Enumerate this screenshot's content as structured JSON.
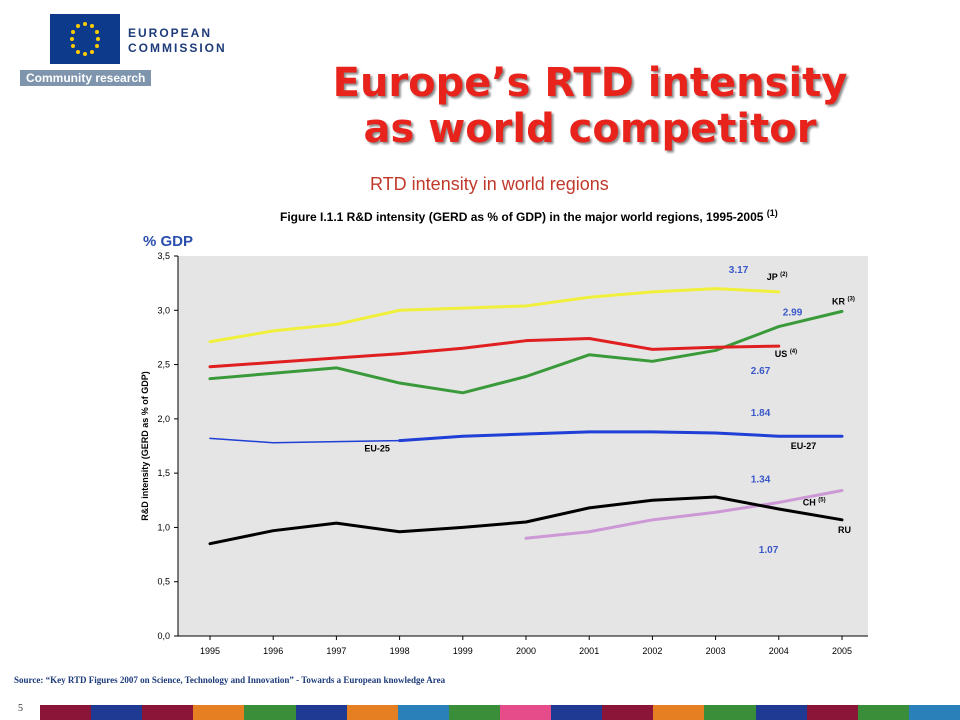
{
  "header": {
    "org_name": "EUROPEAN\nCOMMISSION",
    "org_sub": "Community research",
    "brand_color": "#0e3a8c"
  },
  "slide": {
    "title_line1": "Europe’s RTD intensity",
    "title_line2": "as world competitor",
    "subtitle": "RTD intensity in world regions",
    "unit_label": "% GDP",
    "source": "Source:  “Key RTD Figures 2007 on Science, Technology and Innovation” - Towards a European knowledge Area",
    "slide_number": "5",
    "title_color": "#e8231b"
  },
  "footer": {
    "colors": [
      "#8a1538",
      "#1f3a93",
      "#8a1538",
      "#e67e22",
      "#3a8e3a",
      "#1f3a93",
      "#e67e22",
      "#2a80b9",
      "#3a8e3a",
      "#e74c8a",
      "#1f3a93",
      "#8a1538",
      "#e67e22",
      "#3a8e3a",
      "#1f3a93",
      "#8a1538",
      "#3a8e3a",
      "#2a80b9"
    ]
  },
  "chart_data": {
    "type": "line",
    "title": "Figure I.1.1 R&D intensity (GERD as % of GDP) in the major world regions, 1995-2005",
    "title_note": "(1)",
    "ylabel": "R&D intensity (GERD as % of GDP)",
    "xlabel": "",
    "ylim": [
      0,
      3.5
    ],
    "yticks": [
      "0,0",
      "0,5",
      "1,0",
      "1,5",
      "2,0",
      "2,5",
      "3,0",
      "3,5"
    ],
    "x": [
      "1995",
      "1996",
      "1997",
      "1998",
      "1999",
      "2000",
      "2001",
      "2002",
      "2003",
      "2004",
      "2005"
    ],
    "background": "#e5e5e5",
    "grid": false,
    "series": [
      {
        "name": "JP",
        "note": "(2)",
        "color": "#f0f03c",
        "values": [
          2.71,
          2.81,
          2.87,
          3.0,
          3.02,
          3.04,
          3.12,
          3.17,
          3.2,
          3.17,
          null
        ]
      },
      {
        "name": "KR",
        "note": "(3)",
        "color": "#3a9a3a",
        "values": [
          2.37,
          2.42,
          2.47,
          2.33,
          2.24,
          2.39,
          2.59,
          2.53,
          2.63,
          2.85,
          2.99
        ]
      },
      {
        "name": "US",
        "note": "(4)",
        "color": "#e02020",
        "values": [
          2.48,
          2.52,
          2.56,
          2.6,
          2.65,
          2.72,
          2.74,
          2.64,
          2.66,
          2.67,
          null
        ]
      },
      {
        "name": "EU-27",
        "note": "",
        "color": "#1f3fd6",
        "values": [
          null,
          null,
          null,
          1.8,
          1.84,
          1.86,
          1.88,
          1.88,
          1.87,
          1.84,
          1.84
        ]
      },
      {
        "name": "EU-25",
        "note": "",
        "color": "#1f3fd6",
        "dashed": true,
        "values": [
          1.82,
          1.78,
          1.79,
          1.8,
          null,
          null,
          null,
          null,
          null,
          null,
          null
        ]
      },
      {
        "name": "CH",
        "note": "(5)",
        "color": "#cc99d6",
        "values": [
          null,
          null,
          null,
          null,
          null,
          0.9,
          0.96,
          1.07,
          1.14,
          1.23,
          1.34
        ]
      },
      {
        "name": "RU",
        "note": "",
        "color": "#000000",
        "values": [
          0.85,
          0.97,
          1.04,
          0.96,
          1.0,
          1.05,
          1.18,
          1.25,
          1.28,
          1.17,
          1.07
        ]
      }
    ],
    "value_labels": [
      "3.17",
      "2.99",
      "2.67",
      "1.84",
      "1.34",
      "1.07"
    ]
  }
}
